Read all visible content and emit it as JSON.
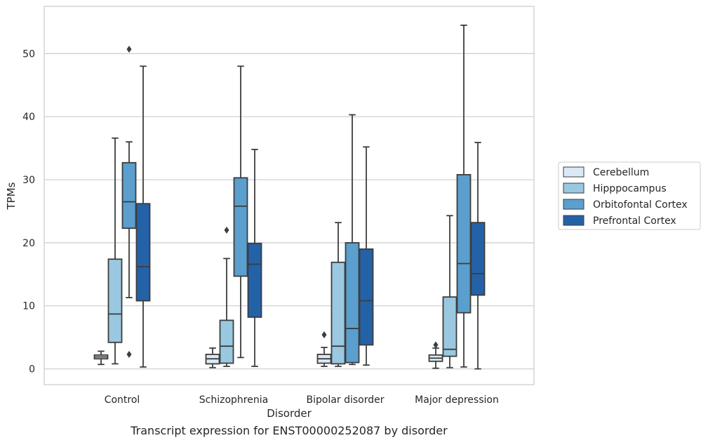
{
  "caption": "Transcript expression for ENST00000252087 by disorder",
  "chart_data": {
    "type": "box",
    "xlabel": "Disorder",
    "ylabel": "TPMs",
    "ylim": [
      -2.5,
      57.5
    ],
    "yticks": [
      0,
      10,
      20,
      30,
      40,
      50
    ],
    "grid": "horizontal",
    "legend_position": "right",
    "categories": [
      "Control",
      "Schizophrenia",
      "Bipolar disorder",
      "Major depression"
    ],
    "series": [
      {
        "name": "Cerebellum",
        "color": "#dbe9f6",
        "boxes": [
          {
            "whislo": 0.7,
            "q1": 1.6,
            "med": 1.9,
            "q3": 2.2,
            "whishi": 2.8,
            "fliers": []
          },
          {
            "whislo": 0.2,
            "q1": 0.8,
            "med": 1.6,
            "q3": 2.3,
            "whishi": 3.3,
            "fliers": []
          },
          {
            "whislo": 0.4,
            "q1": 0.9,
            "med": 1.6,
            "q3": 2.3,
            "whishi": 3.4,
            "fliers": [
              5.4
            ]
          },
          {
            "whislo": 0.1,
            "q1": 1.2,
            "med": 1.7,
            "q3": 2.2,
            "whishi": 3.3,
            "fliers": [
              3.8
            ]
          }
        ]
      },
      {
        "name": "Hipppocampus",
        "color": "#9ac8e0",
        "boxes": [
          {
            "whislo": 0.8,
            "q1": 4.2,
            "med": 8.7,
            "q3": 17.4,
            "whishi": 36.6,
            "fliers": []
          },
          {
            "whislo": 0.4,
            "q1": 0.9,
            "med": 3.6,
            "q3": 7.7,
            "whishi": 17.5,
            "fliers": [
              22.0
            ]
          },
          {
            "whislo": 0.4,
            "q1": 0.8,
            "med": 3.6,
            "q3": 16.9,
            "whishi": 23.2,
            "fliers": []
          },
          {
            "whislo": 0.2,
            "q1": 2.0,
            "med": 3.1,
            "q3": 11.4,
            "whishi": 24.3,
            "fliers": []
          }
        ]
      },
      {
        "name": "Orbitofontal Cortex",
        "color": "#5a9fcd",
        "boxes": [
          {
            "whislo": 11.3,
            "q1": 22.3,
            "med": 26.5,
            "q3": 32.7,
            "whishi": 36.0,
            "fliers": [
              2.3,
              50.7
            ]
          },
          {
            "whislo": 1.8,
            "q1": 14.7,
            "med": 25.8,
            "q3": 30.3,
            "whishi": 48.0,
            "fliers": []
          },
          {
            "whislo": 0.7,
            "q1": 1.0,
            "med": 6.4,
            "q3": 20.0,
            "whishi": 40.3,
            "fliers": []
          },
          {
            "whislo": 0.3,
            "q1": 8.9,
            "med": 16.7,
            "q3": 30.8,
            "whishi": 54.5,
            "fliers": []
          }
        ]
      },
      {
        "name": "Prefrontal Cortex",
        "color": "#2462a8",
        "boxes": [
          {
            "whislo": 0.3,
            "q1": 10.8,
            "med": 16.2,
            "q3": 26.2,
            "whishi": 48.0,
            "fliers": []
          },
          {
            "whislo": 0.4,
            "q1": 8.2,
            "med": 16.6,
            "q3": 19.9,
            "whishi": 34.8,
            "fliers": []
          },
          {
            "whislo": 0.6,
            "q1": 3.8,
            "med": 10.8,
            "q3": 19.0,
            "whishi": 35.2,
            "fliers": []
          },
          {
            "whislo": 0.0,
            "q1": 11.7,
            "med": 15.1,
            "q3": 23.2,
            "whishi": 35.9,
            "fliers": []
          }
        ]
      }
    ]
  }
}
